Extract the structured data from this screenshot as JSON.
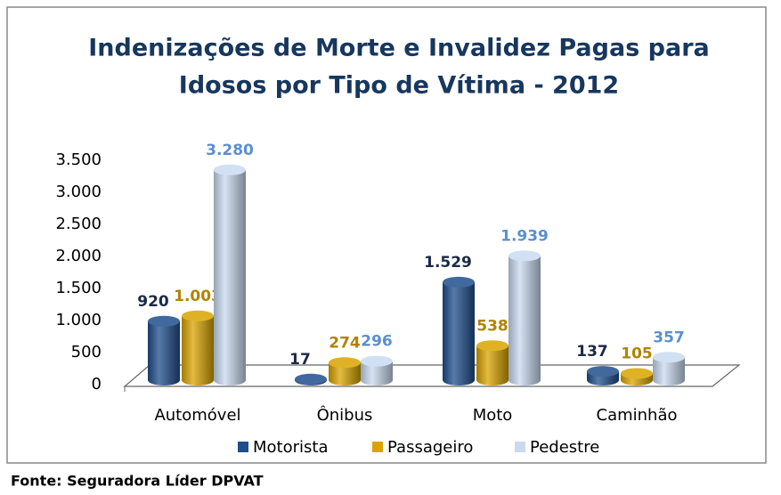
{
  "chart_data": {
    "type": "bar3d",
    "title": [
      "Indenizações de Morte e Invalidez Pagas para",
      "Idosos por Tipo de Vítima - 2012"
    ],
    "categories": [
      "Automóvel",
      "Ônibus",
      "Moto",
      "Caminhão"
    ],
    "series": [
      {
        "name": "Motorista",
        "color": "#1f4e8c",
        "label_color": "#1a2a48",
        "values": [
          920,
          17,
          1529,
          137
        ],
        "value_labels": [
          "920",
          "17",
          "1.529",
          "137"
        ]
      },
      {
        "name": "Passageiro",
        "color": "#d9a400",
        "label_color": "#b08400",
        "values": [
          1003,
          274,
          538,
          105
        ],
        "value_labels": [
          "1.003",
          "274",
          "538",
          "105"
        ]
      },
      {
        "name": "Pedestre",
        "color": "#c9daf0",
        "label_color": "#5b8fd0",
        "values": [
          3280,
          296,
          1939,
          357
        ],
        "value_labels": [
          "3.280",
          "296",
          "1.939",
          "357"
        ]
      }
    ],
    "ylim": [
      0,
      3500
    ],
    "yticks": [
      0,
      500,
      {
        "value": 1000,
        "label": "1.000"
      },
      {
        "value": 1500,
        "label": "1.500"
      },
      {
        "value": 2000,
        "label": "2.000"
      },
      {
        "value": 2500,
        "label": "2.500"
      },
      {
        "value": 3000,
        "label": "3.000"
      },
      {
        "value": 3500,
        "label": "3.500"
      }
    ],
    "grid": false,
    "legend": "bottom",
    "source": "Fonte: Seguradora Líder DPVAT"
  }
}
